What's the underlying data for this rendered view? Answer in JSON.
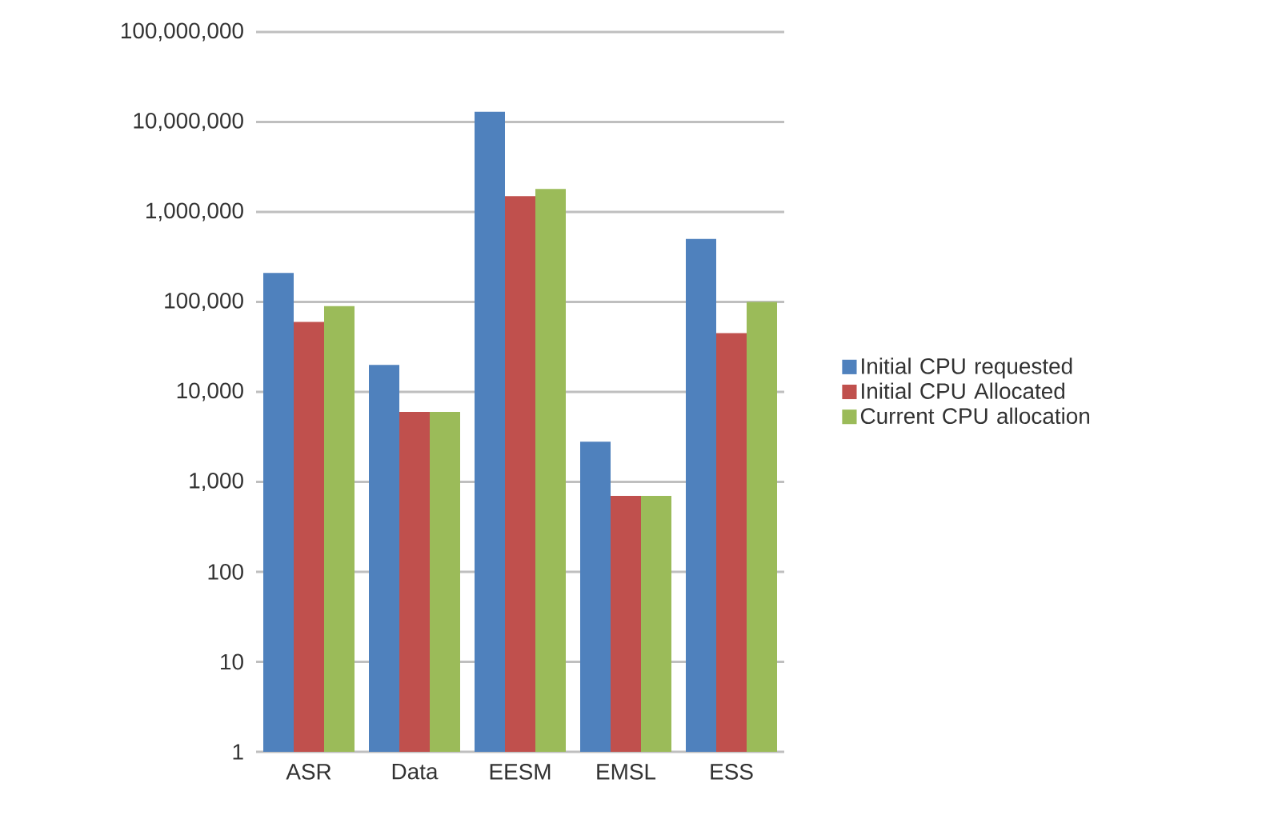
{
  "chart_data": {
    "type": "bar",
    "categories": [
      "ASR",
      "Data",
      "EESM",
      "EMSL",
      "ESS"
    ],
    "series": [
      {
        "name": "Initial CPU requested",
        "color": "#4f81bd",
        "values": [
          210000,
          20000,
          13000000,
          2800,
          500000
        ]
      },
      {
        "name": "Initial CPU Allocated",
        "color": "#c0504d",
        "values": [
          60000,
          6000,
          1500000,
          700,
          45000
        ]
      },
      {
        "name": "Current CPU allocation",
        "color": "#9bbb59",
        "values": [
          90000,
          6000,
          1800000,
          700,
          100000
        ]
      }
    ],
    "log": "y",
    "ylim": [
      1,
      100000000
    ],
    "yticks": [
      {
        "value": 1,
        "label": "1"
      },
      {
        "value": 10,
        "label": "10"
      },
      {
        "value": 100,
        "label": "100"
      },
      {
        "value": 1000,
        "label": "1,000"
      },
      {
        "value": 10000,
        "label": "10,000"
      },
      {
        "value": 100000,
        "label": "100,000"
      },
      {
        "value": 1000000,
        "label": "1,000,000"
      },
      {
        "value": 10000000,
        "label": "10,000,000"
      },
      {
        "value": 100000000,
        "label": "100,000,000"
      }
    ],
    "grid": "y",
    "legend": "right"
  }
}
